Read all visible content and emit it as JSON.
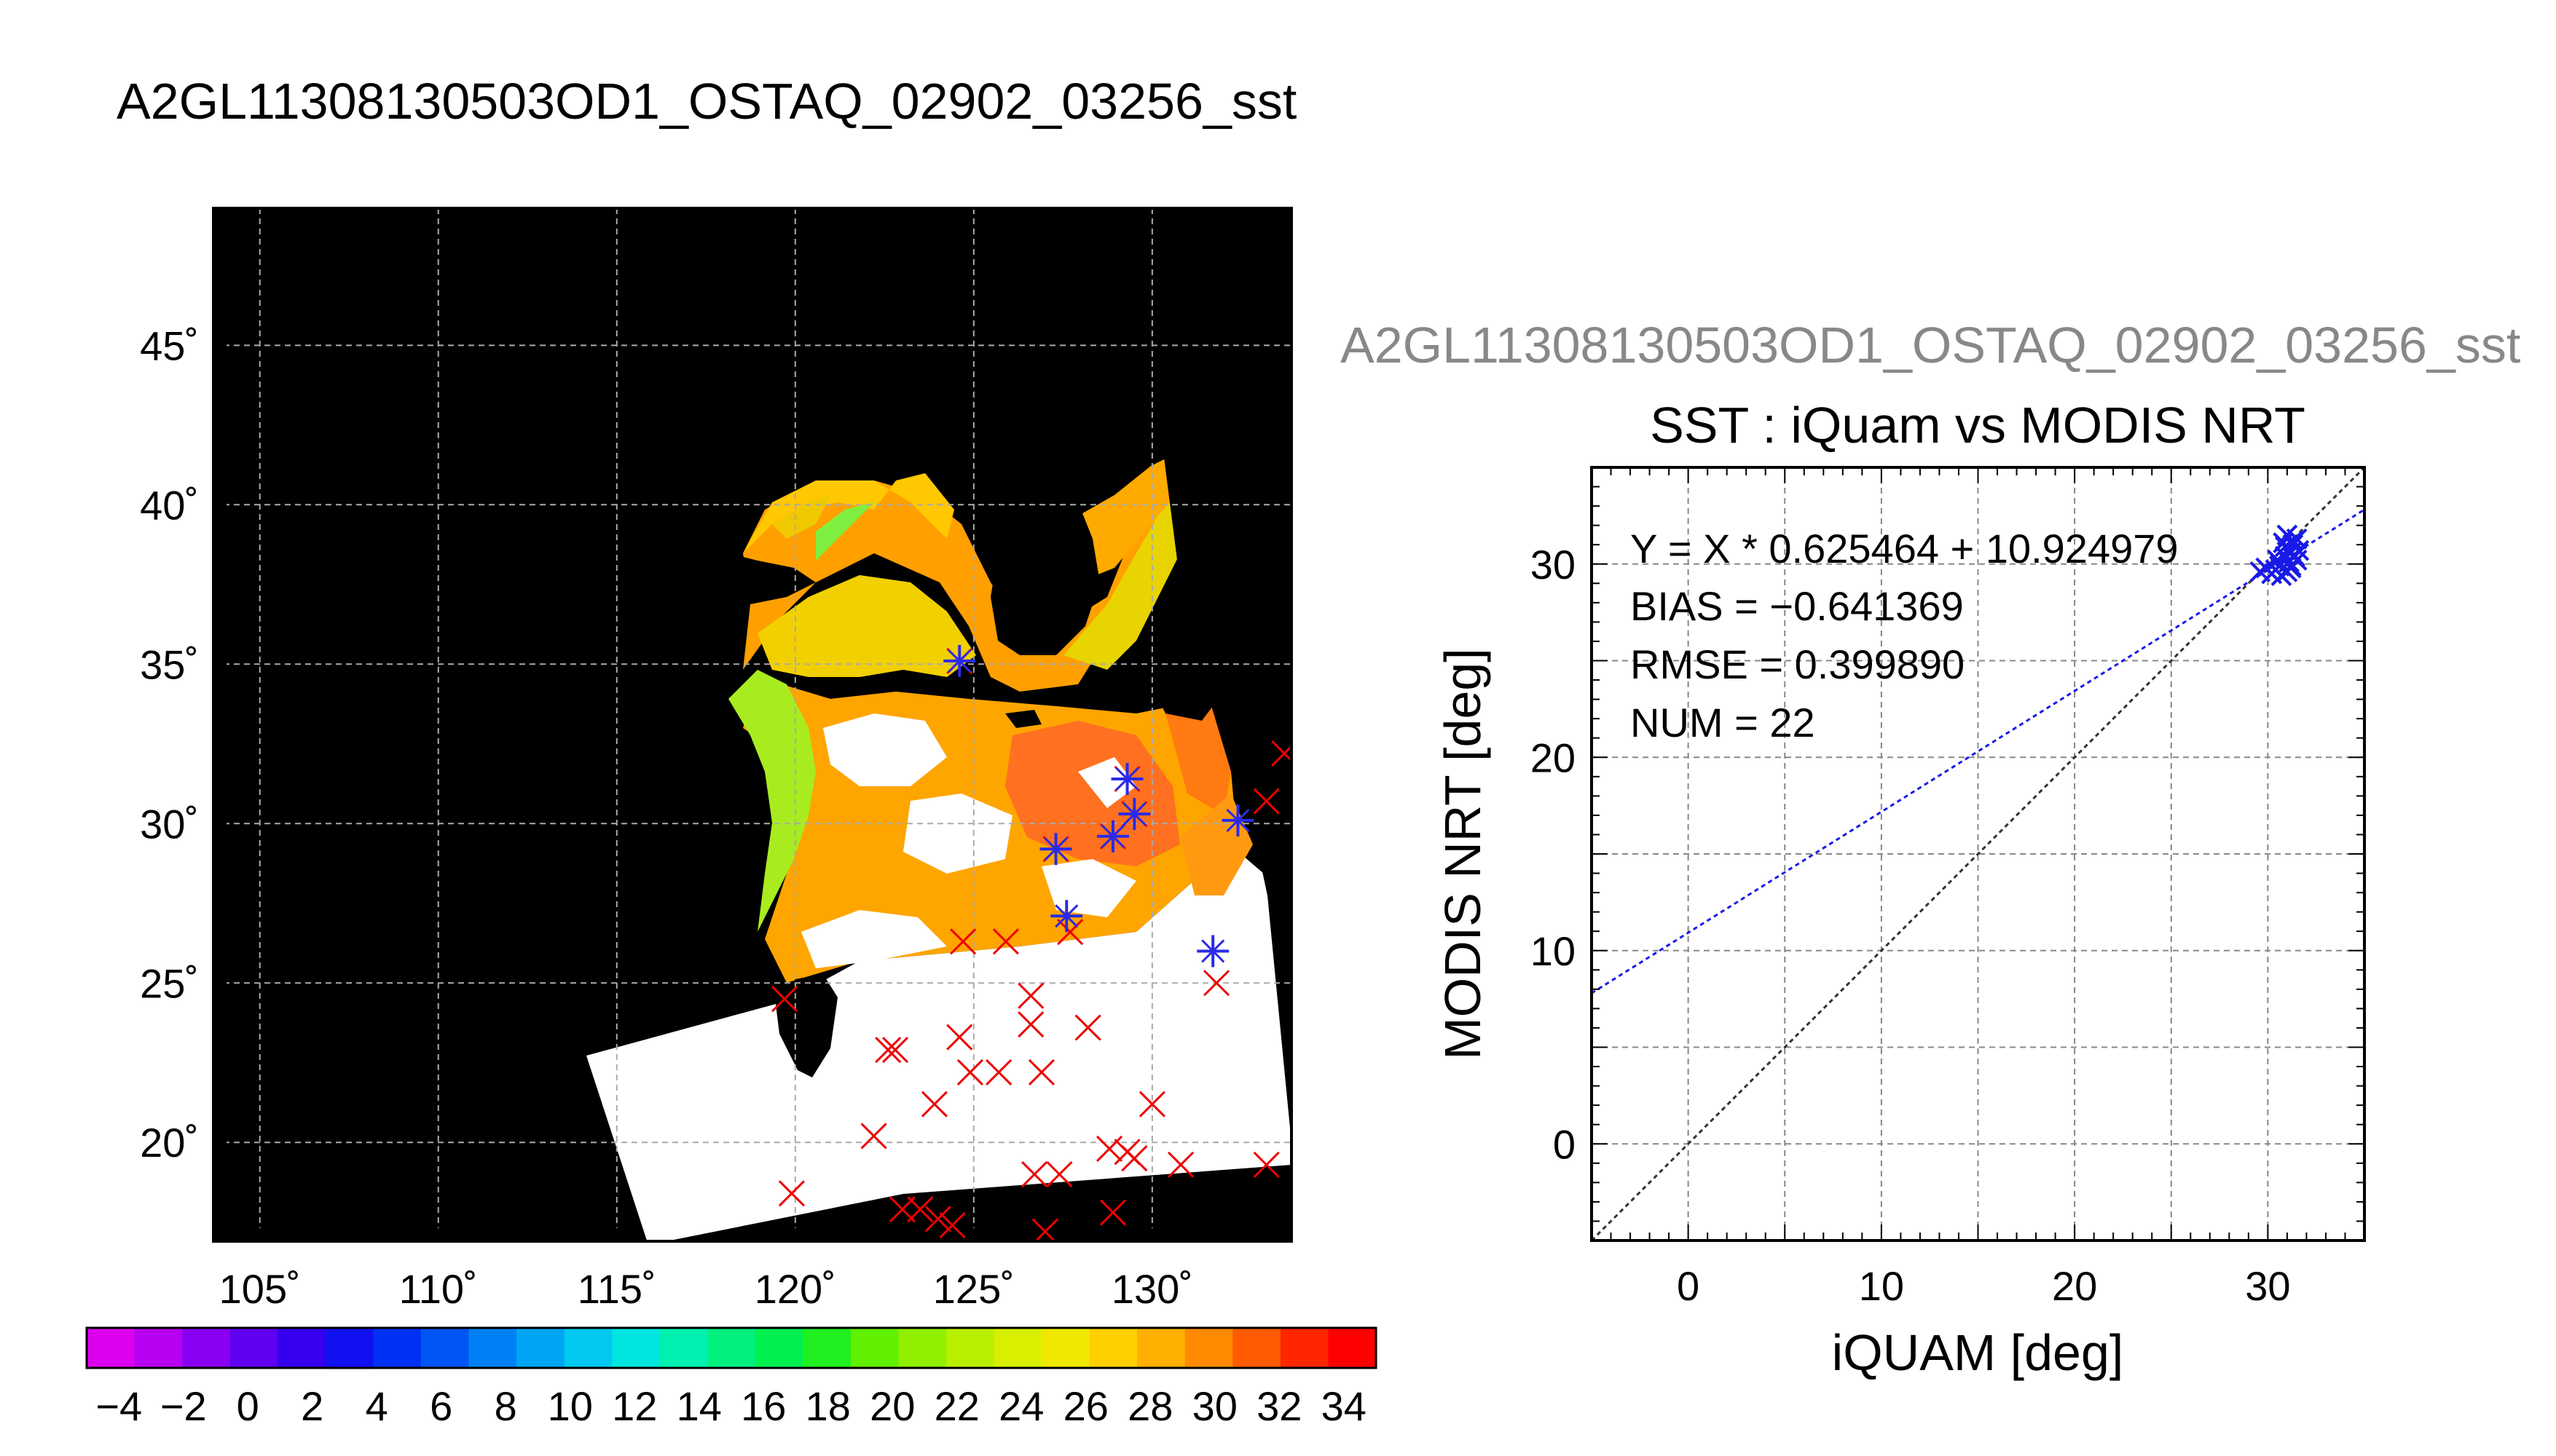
{
  "page_title": "A2GL11308130503OD1_OSTAQ_02902_03256_sst",
  "chart_data": [
    {
      "type": "heatmap",
      "title": "A2GL11308130503OD1_OSTAQ_02902_03256_sst",
      "xlim": [
        103.7,
        133.9
      ],
      "ylim": [
        16.9,
        49.3
      ],
      "x_ticks": [
        105,
        110,
        115,
        120,
        125,
        130
      ],
      "x_tick_labels": [
        "105˚",
        "110˚",
        "115˚",
        "120˚",
        "125˚",
        "130˚"
      ],
      "y_ticks": [
        20,
        25,
        30,
        35,
        40,
        45
      ],
      "y_tick_labels": [
        "20˚",
        "25˚",
        "30˚",
        "35˚",
        "40˚",
        "45˚"
      ],
      "grid": true,
      "grid_lon": [
        105,
        110,
        115,
        120,
        125,
        130
      ],
      "grid_lat": [
        20,
        25,
        30,
        35,
        40,
        45
      ],
      "colorbar": {
        "min": -5,
        "max": 35,
        "ticks": [
          -4,
          -2,
          0,
          2,
          4,
          6,
          8,
          10,
          12,
          14,
          16,
          18,
          20,
          22,
          24,
          26,
          28,
          30,
          32,
          34
        ],
        "tick_labels": [
          "−4",
          "−2",
          "0",
          "2",
          "4",
          "6",
          "8",
          "10",
          "12",
          "14",
          "16",
          "18",
          "20",
          "22",
          "24",
          "26",
          "28",
          "30",
          "32",
          "34"
        ],
        "colors": [
          "#dd00ee",
          "#b700f2",
          "#8a00f2",
          "#5f00f0",
          "#3600ee",
          "#1010f0",
          "#0030f5",
          "#0055f5",
          "#0080f5",
          "#00a5f5",
          "#00c8f0",
          "#00e5e0",
          "#00f0b0",
          "#00f080",
          "#00f050",
          "#20f020",
          "#60f000",
          "#90f000",
          "#b8f000",
          "#d8f000",
          "#f0e800",
          "#ffd000",
          "#ffb000",
          "#ff8a00",
          "#ff5a00",
          "#ff2600",
          "#ff0000"
        ]
      },
      "colors": {
        "background": "#000000",
        "no_data": "#ffffff",
        "sst_warm": "#ff9a00",
        "sst_hot": "#ff6a1a",
        "sst_mid": "#ffc000",
        "sst_cool": "#c8e800",
        "sst_coast": "#90f040",
        "marker_red": "#ee0000",
        "marker_blue": "#2a2ae8",
        "grid": "#aaaaaa"
      },
      "red_markers": [
        [
          119.7,
          24.5
        ],
        [
          124.7,
          26.3
        ],
        [
          125.9,
          26.3
        ],
        [
          126.6,
          24.6
        ],
        [
          126.6,
          23.7
        ],
        [
          128.2,
          23.6
        ],
        [
          124.6,
          23.3
        ],
        [
          124.9,
          22.2
        ],
        [
          125.7,
          22.2
        ],
        [
          126.9,
          22.2
        ],
        [
          122.6,
          22.9
        ],
        [
          122.8,
          22.9
        ],
        [
          123.9,
          21.2
        ],
        [
          122.2,
          20.2
        ],
        [
          119.9,
          18.4
        ],
        [
          123.0,
          17.9
        ],
        [
          123.5,
          17.9
        ],
        [
          124.0,
          17.6
        ],
        [
          124.4,
          17.4
        ],
        [
          126.7,
          19.0
        ],
        [
          127.4,
          19.0
        ],
        [
          128.8,
          19.8
        ],
        [
          129.3,
          19.7
        ],
        [
          129.5,
          19.5
        ],
        [
          130.0,
          21.2
        ],
        [
          130.8,
          19.3
        ],
        [
          128.9,
          17.8
        ],
        [
          127.0,
          17.2
        ],
        [
          133.2,
          19.3
        ],
        [
          131.8,
          25.0
        ],
        [
          133.2,
          30.7
        ],
        [
          133.7,
          32.2
        ],
        [
          127.3,
          29.2
        ],
        [
          128.9,
          29.6
        ],
        [
          129.3,
          31.4
        ],
        [
          129.5,
          30.3
        ],
        [
          127.7,
          26.6
        ],
        [
          124.6,
          35.1
        ]
      ],
      "blue_markers": [
        [
          124.6,
          35.1
        ],
        [
          127.3,
          29.2
        ],
        [
          128.9,
          29.6
        ],
        [
          129.3,
          31.4
        ],
        [
          129.5,
          30.3
        ],
        [
          127.6,
          27.1
        ],
        [
          131.7,
          26.0
        ],
        [
          132.4,
          30.1
        ]
      ]
    },
    {
      "type": "scatter",
      "title": "SST : iQuam vs MODIS NRT",
      "header": "A2GL11308130503OD1_OSTAQ_02902_03256_sst",
      "xlabel": "iQUAM [deg]",
      "ylabel": "MODIS NRT [deg]",
      "xlim": [
        -5,
        35
      ],
      "ylim": [
        -5,
        35
      ],
      "x_ticks": [
        0,
        10,
        20,
        30
      ],
      "x_tick_labels": [
        "0",
        "10",
        "20",
        "30"
      ],
      "y_ticks": [
        0,
        10,
        20,
        30
      ],
      "y_tick_labels": [
        "0",
        "10",
        "20",
        "30"
      ],
      "grid": true,
      "grid_values": [
        0,
        5,
        10,
        15,
        20,
        25,
        30
      ],
      "annotations": [
        "Y = X * 0.625464 + 10.924979",
        "BIAS = −0.641369",
        "RMSE = 0.399890",
        "NUM = 22"
      ],
      "fit_line": {
        "slope": 0.625464,
        "intercept": 10.924979,
        "color": "#1a1ae8"
      },
      "identity_line": {
        "slope": 1,
        "intercept": 0,
        "color": "#333333"
      },
      "marker_color": "#1a1ae8",
      "points": [
        [
          29.6,
          29.6
        ],
        [
          29.9,
          29.8
        ],
        [
          30.2,
          29.5
        ],
        [
          30.4,
          29.7
        ],
        [
          30.6,
          29.9
        ],
        [
          30.5,
          30.2
        ],
        [
          30.8,
          31.1
        ],
        [
          30.9,
          30.4
        ],
        [
          31.0,
          31.5
        ],
        [
          31.1,
          30.1
        ],
        [
          31.2,
          29.8
        ],
        [
          31.2,
          30.6
        ],
        [
          31.3,
          31.0
        ],
        [
          31.4,
          30.4
        ],
        [
          31.5,
          30.2
        ],
        [
          31.0,
          29.6
        ],
        [
          30.7,
          29.4
        ],
        [
          31.3,
          31.2
        ],
        [
          31.6,
          30.7
        ],
        [
          31.5,
          31.3
        ],
        [
          30.9,
          30.9
        ],
        [
          31.2,
          29.9
        ]
      ]
    }
  ]
}
